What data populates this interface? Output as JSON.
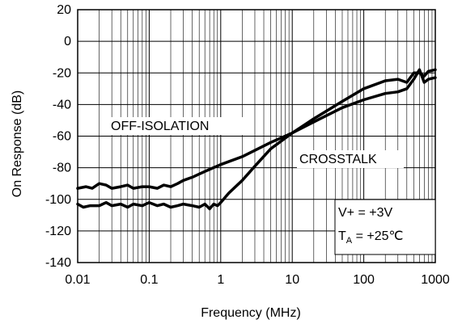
{
  "chart_data": {
    "type": "line",
    "xlabel": "Frequency (MHz)",
    "ylabel": "On Response (dB)",
    "x_scale": "log",
    "xlim": [
      0.01,
      1000
    ],
    "ylim": [
      -140,
      20
    ],
    "grid": true,
    "x_ticks": [
      "0.01",
      "0.1",
      "1",
      "10",
      "100",
      "1000"
    ],
    "y_ticks": [
      "20",
      "0",
      "-20",
      "-40",
      "-60",
      "-80",
      "-100",
      "-120",
      "-140"
    ],
    "annotations": {
      "off_isolation": "OFF-ISOLATION",
      "crosstalk": "CROSSTALK",
      "supply": "V+ = +3V",
      "temp_prefix": "T",
      "temp_sub": "A",
      "temp_suffix": " = +25℃"
    },
    "series": [
      {
        "label": "OFF-ISOLATION",
        "x": [
          0.01,
          0.013,
          0.016,
          0.02,
          0.025,
          0.03,
          0.04,
          0.05,
          0.06,
          0.08,
          0.1,
          0.13,
          0.16,
          0.2,
          0.25,
          0.3,
          0.4,
          0.5,
          0.7,
          1,
          2,
          5,
          10,
          20,
          50,
          100,
          200,
          300,
          400,
          500,
          600,
          700,
          800,
          1000
        ],
        "y": [
          -93,
          -92,
          -93,
          -90,
          -91,
          -93,
          -92,
          -91,
          -93,
          -92,
          -92,
          -93,
          -91,
          -92,
          -90,
          -88,
          -86,
          -84,
          -81,
          -78,
          -73,
          -64,
          -58,
          -51,
          -42,
          -37,
          -33,
          -32,
          -30,
          -24,
          -18,
          -26,
          -24,
          -23
        ]
      },
      {
        "label": "CROSSTALK",
        "x": [
          0.01,
          0.012,
          0.015,
          0.02,
          0.025,
          0.03,
          0.04,
          0.05,
          0.06,
          0.08,
          0.1,
          0.13,
          0.16,
          0.2,
          0.25,
          0.3,
          0.4,
          0.5,
          0.6,
          0.7,
          0.8,
          0.9,
          1,
          1.3,
          2,
          3,
          5,
          10,
          20,
          50,
          100,
          200,
          300,
          400,
          500,
          600,
          700,
          800,
          1000
        ],
        "y": [
          -103,
          -105,
          -104,
          -104,
          -102,
          -104,
          -103,
          -105,
          -103,
          -104,
          -102,
          -104,
          -103,
          -105,
          -104,
          -103,
          -104,
          -105,
          -103,
          -106,
          -103,
          -104,
          -102,
          -96,
          -88,
          -79,
          -68,
          -58,
          -49,
          -38,
          -30,
          -25,
          -24,
          -26,
          -20,
          -20,
          -22,
          -19,
          -18
        ]
      }
    ]
  }
}
